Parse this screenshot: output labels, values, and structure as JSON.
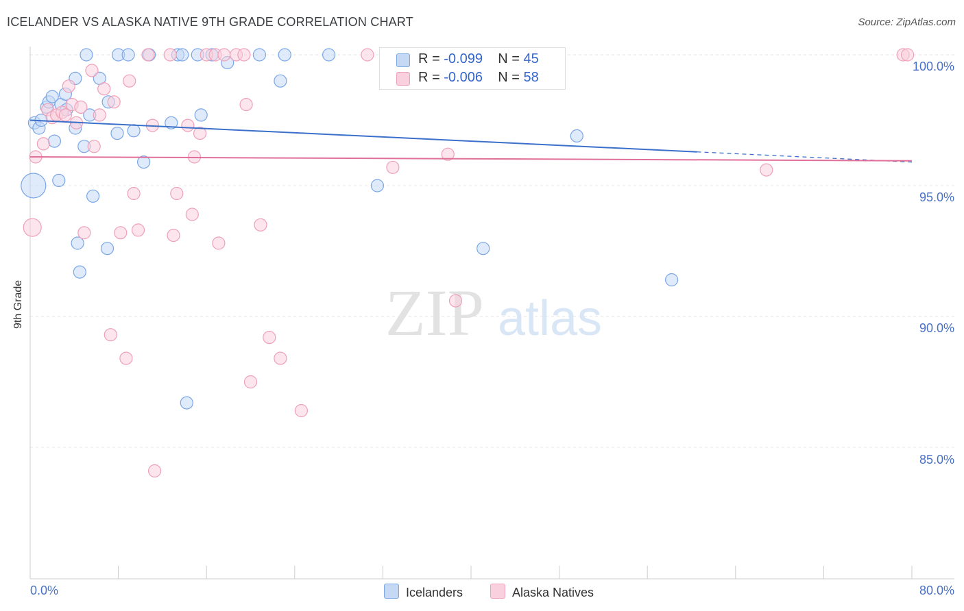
{
  "header": {
    "title": "ICELANDER VS ALASKA NATIVE 9TH GRADE CORRELATION CHART",
    "source": "Source: ZipAtlas.com"
  },
  "watermark": {
    "zip": "ZIP",
    "atlas": "atlas"
  },
  "legend_top": {
    "rows": [
      {
        "r_label": "R =",
        "r_value": "-0.099",
        "n_label": "N =",
        "n_value": "45",
        "color": "#a7c4f2"
      },
      {
        "r_label": "R =",
        "r_value": "-0.006",
        "n_label": "N =",
        "n_value": "58",
        "color": "#f6b5c9"
      }
    ]
  },
  "legend_bottom": {
    "items": [
      "Icelanders",
      "Alaska Natives"
    ]
  },
  "axis": {
    "ylabel": "9th Grade",
    "x_min_label": "0.0%",
    "x_max_label": "80.0%",
    "y_ticks": [
      "100.0%",
      "95.0%",
      "90.0%",
      "85.0%"
    ]
  },
  "chart_data": {
    "type": "scatter",
    "title": "ICELANDER VS ALASKA NATIVE 9TH GRADE CORRELATION CHART",
    "xlabel": "",
    "ylabel": "9th Grade",
    "xlim": [
      0,
      80
    ],
    "ylim": [
      80.5,
      100.7
    ],
    "y_ticks": [
      85,
      90,
      95,
      100
    ],
    "grid": true,
    "legend": "top-center",
    "series": [
      {
        "name": "Icelanders",
        "color": "#7aa6e6",
        "fill": "#c5d9f5",
        "trend": {
          "x": [
            0,
            80
          ],
          "y": [
            97.5,
            95.9
          ],
          "solid_until_x": 60.5
        },
        "points": [
          {
            "x": 0.3,
            "y": 95.0,
            "s": 18
          },
          {
            "x": 0.4,
            "y": 97.4,
            "s": 9
          },
          {
            "x": 0.8,
            "y": 97.2,
            "s": 9
          },
          {
            "x": 1.0,
            "y": 97.5,
            "s": 9
          },
          {
            "x": 1.5,
            "y": 98.0,
            "s": 9
          },
          {
            "x": 1.7,
            "y": 98.2,
            "s": 9
          },
          {
            "x": 2.0,
            "y": 98.4,
            "s": 9
          },
          {
            "x": 2.2,
            "y": 96.7,
            "s": 9
          },
          {
            "x": 2.6,
            "y": 95.2,
            "s": 9
          },
          {
            "x": 2.8,
            "y": 98.1,
            "s": 9
          },
          {
            "x": 3.2,
            "y": 98.5,
            "s": 9
          },
          {
            "x": 3.3,
            "y": 97.9,
            "s": 9
          },
          {
            "x": 4.1,
            "y": 97.2,
            "s": 9
          },
          {
            "x": 4.1,
            "y": 99.1,
            "s": 9
          },
          {
            "x": 4.3,
            "y": 92.8,
            "s": 9
          },
          {
            "x": 4.5,
            "y": 91.7,
            "s": 9
          },
          {
            "x": 4.9,
            "y": 96.5,
            "s": 9
          },
          {
            "x": 5.1,
            "y": 100.0,
            "s": 9
          },
          {
            "x": 5.4,
            "y": 97.7,
            "s": 9
          },
          {
            "x": 5.7,
            "y": 94.6,
            "s": 9
          },
          {
            "x": 6.3,
            "y": 99.1,
            "s": 9
          },
          {
            "x": 7.0,
            "y": 92.6,
            "s": 9
          },
          {
            "x": 7.1,
            "y": 98.2,
            "s": 9
          },
          {
            "x": 7.9,
            "y": 97.0,
            "s": 9
          },
          {
            "x": 8.0,
            "y": 100.0,
            "s": 9
          },
          {
            "x": 8.9,
            "y": 100.0,
            "s": 9
          },
          {
            "x": 9.4,
            "y": 97.1,
            "s": 9
          },
          {
            "x": 10.3,
            "y": 95.9,
            "s": 9
          },
          {
            "x": 10.8,
            "y": 100.0,
            "s": 9
          },
          {
            "x": 12.8,
            "y": 97.4,
            "s": 9
          },
          {
            "x": 13.4,
            "y": 100.0,
            "s": 9
          },
          {
            "x": 13.8,
            "y": 100.0,
            "s": 9
          },
          {
            "x": 14.2,
            "y": 86.7,
            "s": 9
          },
          {
            "x": 15.2,
            "y": 100.0,
            "s": 9
          },
          {
            "x": 15.5,
            "y": 97.7,
            "s": 9
          },
          {
            "x": 16.5,
            "y": 100.0,
            "s": 9
          },
          {
            "x": 17.9,
            "y": 99.7,
            "s": 9
          },
          {
            "x": 20.8,
            "y": 100.0,
            "s": 9
          },
          {
            "x": 22.7,
            "y": 99.0,
            "s": 9
          },
          {
            "x": 23.1,
            "y": 100.0,
            "s": 9
          },
          {
            "x": 27.1,
            "y": 100.0,
            "s": 9
          },
          {
            "x": 31.5,
            "y": 95.0,
            "s": 9
          },
          {
            "x": 41.1,
            "y": 92.6,
            "s": 9
          },
          {
            "x": 49.6,
            "y": 96.9,
            "s": 9
          },
          {
            "x": 58.2,
            "y": 91.4,
            "s": 9
          }
        ]
      },
      {
        "name": "Alaska Natives",
        "color": "#eea0b9",
        "fill": "#f9d0dd",
        "trend": {
          "x": [
            0,
            80
          ],
          "y": [
            96.1,
            95.95
          ]
        },
        "points": [
          {
            "x": 0.2,
            "y": 93.4,
            "s": 13
          },
          {
            "x": 0.5,
            "y": 96.1,
            "s": 9
          },
          {
            "x": 1.2,
            "y": 96.6,
            "s": 9
          },
          {
            "x": 1.6,
            "y": 97.9,
            "s": 9
          },
          {
            "x": 2.0,
            "y": 97.6,
            "s": 9
          },
          {
            "x": 2.4,
            "y": 97.7,
            "s": 9
          },
          {
            "x": 2.9,
            "y": 97.8,
            "s": 9
          },
          {
            "x": 3.2,
            "y": 97.7,
            "s": 9
          },
          {
            "x": 3.5,
            "y": 98.8,
            "s": 9
          },
          {
            "x": 3.8,
            "y": 98.1,
            "s": 9
          },
          {
            "x": 4.2,
            "y": 97.4,
            "s": 9
          },
          {
            "x": 4.6,
            "y": 98.0,
            "s": 9
          },
          {
            "x": 4.9,
            "y": 93.2,
            "s": 9
          },
          {
            "x": 5.6,
            "y": 99.4,
            "s": 9
          },
          {
            "x": 5.8,
            "y": 96.5,
            "s": 9
          },
          {
            "x": 6.3,
            "y": 97.7,
            "s": 9
          },
          {
            "x": 6.7,
            "y": 98.7,
            "s": 9
          },
          {
            "x": 7.3,
            "y": 89.3,
            "s": 9
          },
          {
            "x": 7.6,
            "y": 98.2,
            "s": 9
          },
          {
            "x": 8.2,
            "y": 93.2,
            "s": 9
          },
          {
            "x": 8.7,
            "y": 88.4,
            "s": 9
          },
          {
            "x": 9.0,
            "y": 99.0,
            "s": 9
          },
          {
            "x": 9.4,
            "y": 94.7,
            "s": 9
          },
          {
            "x": 9.8,
            "y": 93.3,
            "s": 9
          },
          {
            "x": 10.7,
            "y": 100.0,
            "s": 9
          },
          {
            "x": 11.1,
            "y": 97.3,
            "s": 9
          },
          {
            "x": 11.3,
            "y": 84.1,
            "s": 9
          },
          {
            "x": 12.7,
            "y": 100.0,
            "s": 9
          },
          {
            "x": 13.0,
            "y": 93.1,
            "s": 9
          },
          {
            "x": 13.3,
            "y": 94.7,
            "s": 9
          },
          {
            "x": 14.3,
            "y": 97.3,
            "s": 9
          },
          {
            "x": 14.7,
            "y": 93.9,
            "s": 9
          },
          {
            "x": 14.9,
            "y": 96.1,
            "s": 9
          },
          {
            "x": 15.4,
            "y": 97.0,
            "s": 9
          },
          {
            "x": 16.0,
            "y": 100.0,
            "s": 9
          },
          {
            "x": 16.8,
            "y": 100.0,
            "s": 9
          },
          {
            "x": 17.1,
            "y": 92.8,
            "s": 9
          },
          {
            "x": 17.6,
            "y": 100.0,
            "s": 9
          },
          {
            "x": 18.7,
            "y": 100.0,
            "s": 9
          },
          {
            "x": 19.4,
            "y": 100.0,
            "s": 9
          },
          {
            "x": 19.6,
            "y": 98.1,
            "s": 9
          },
          {
            "x": 20.0,
            "y": 87.5,
            "s": 9
          },
          {
            "x": 20.9,
            "y": 93.5,
            "s": 9
          },
          {
            "x": 21.7,
            "y": 89.2,
            "s": 9
          },
          {
            "x": 22.7,
            "y": 88.4,
            "s": 9
          },
          {
            "x": 24.6,
            "y": 86.4,
            "s": 9
          },
          {
            "x": 30.6,
            "y": 100.0,
            "s": 9
          },
          {
            "x": 32.9,
            "y": 95.7,
            "s": 9
          },
          {
            "x": 37.9,
            "y": 96.2,
            "s": 9
          },
          {
            "x": 38.6,
            "y": 90.6,
            "s": 9
          },
          {
            "x": 40.9,
            "y": 100.0,
            "s": 9
          },
          {
            "x": 41.5,
            "y": 100.0,
            "s": 9
          },
          {
            "x": 44.2,
            "y": 100.0,
            "s": 9
          },
          {
            "x": 44.8,
            "y": 100.0,
            "s": 9
          },
          {
            "x": 47.0,
            "y": 100.0,
            "s": 9
          },
          {
            "x": 66.8,
            "y": 95.6,
            "s": 9
          },
          {
            "x": 79.2,
            "y": 100.0,
            "s": 9
          },
          {
            "x": 79.6,
            "y": 100.0,
            "s": 9
          }
        ]
      }
    ]
  }
}
